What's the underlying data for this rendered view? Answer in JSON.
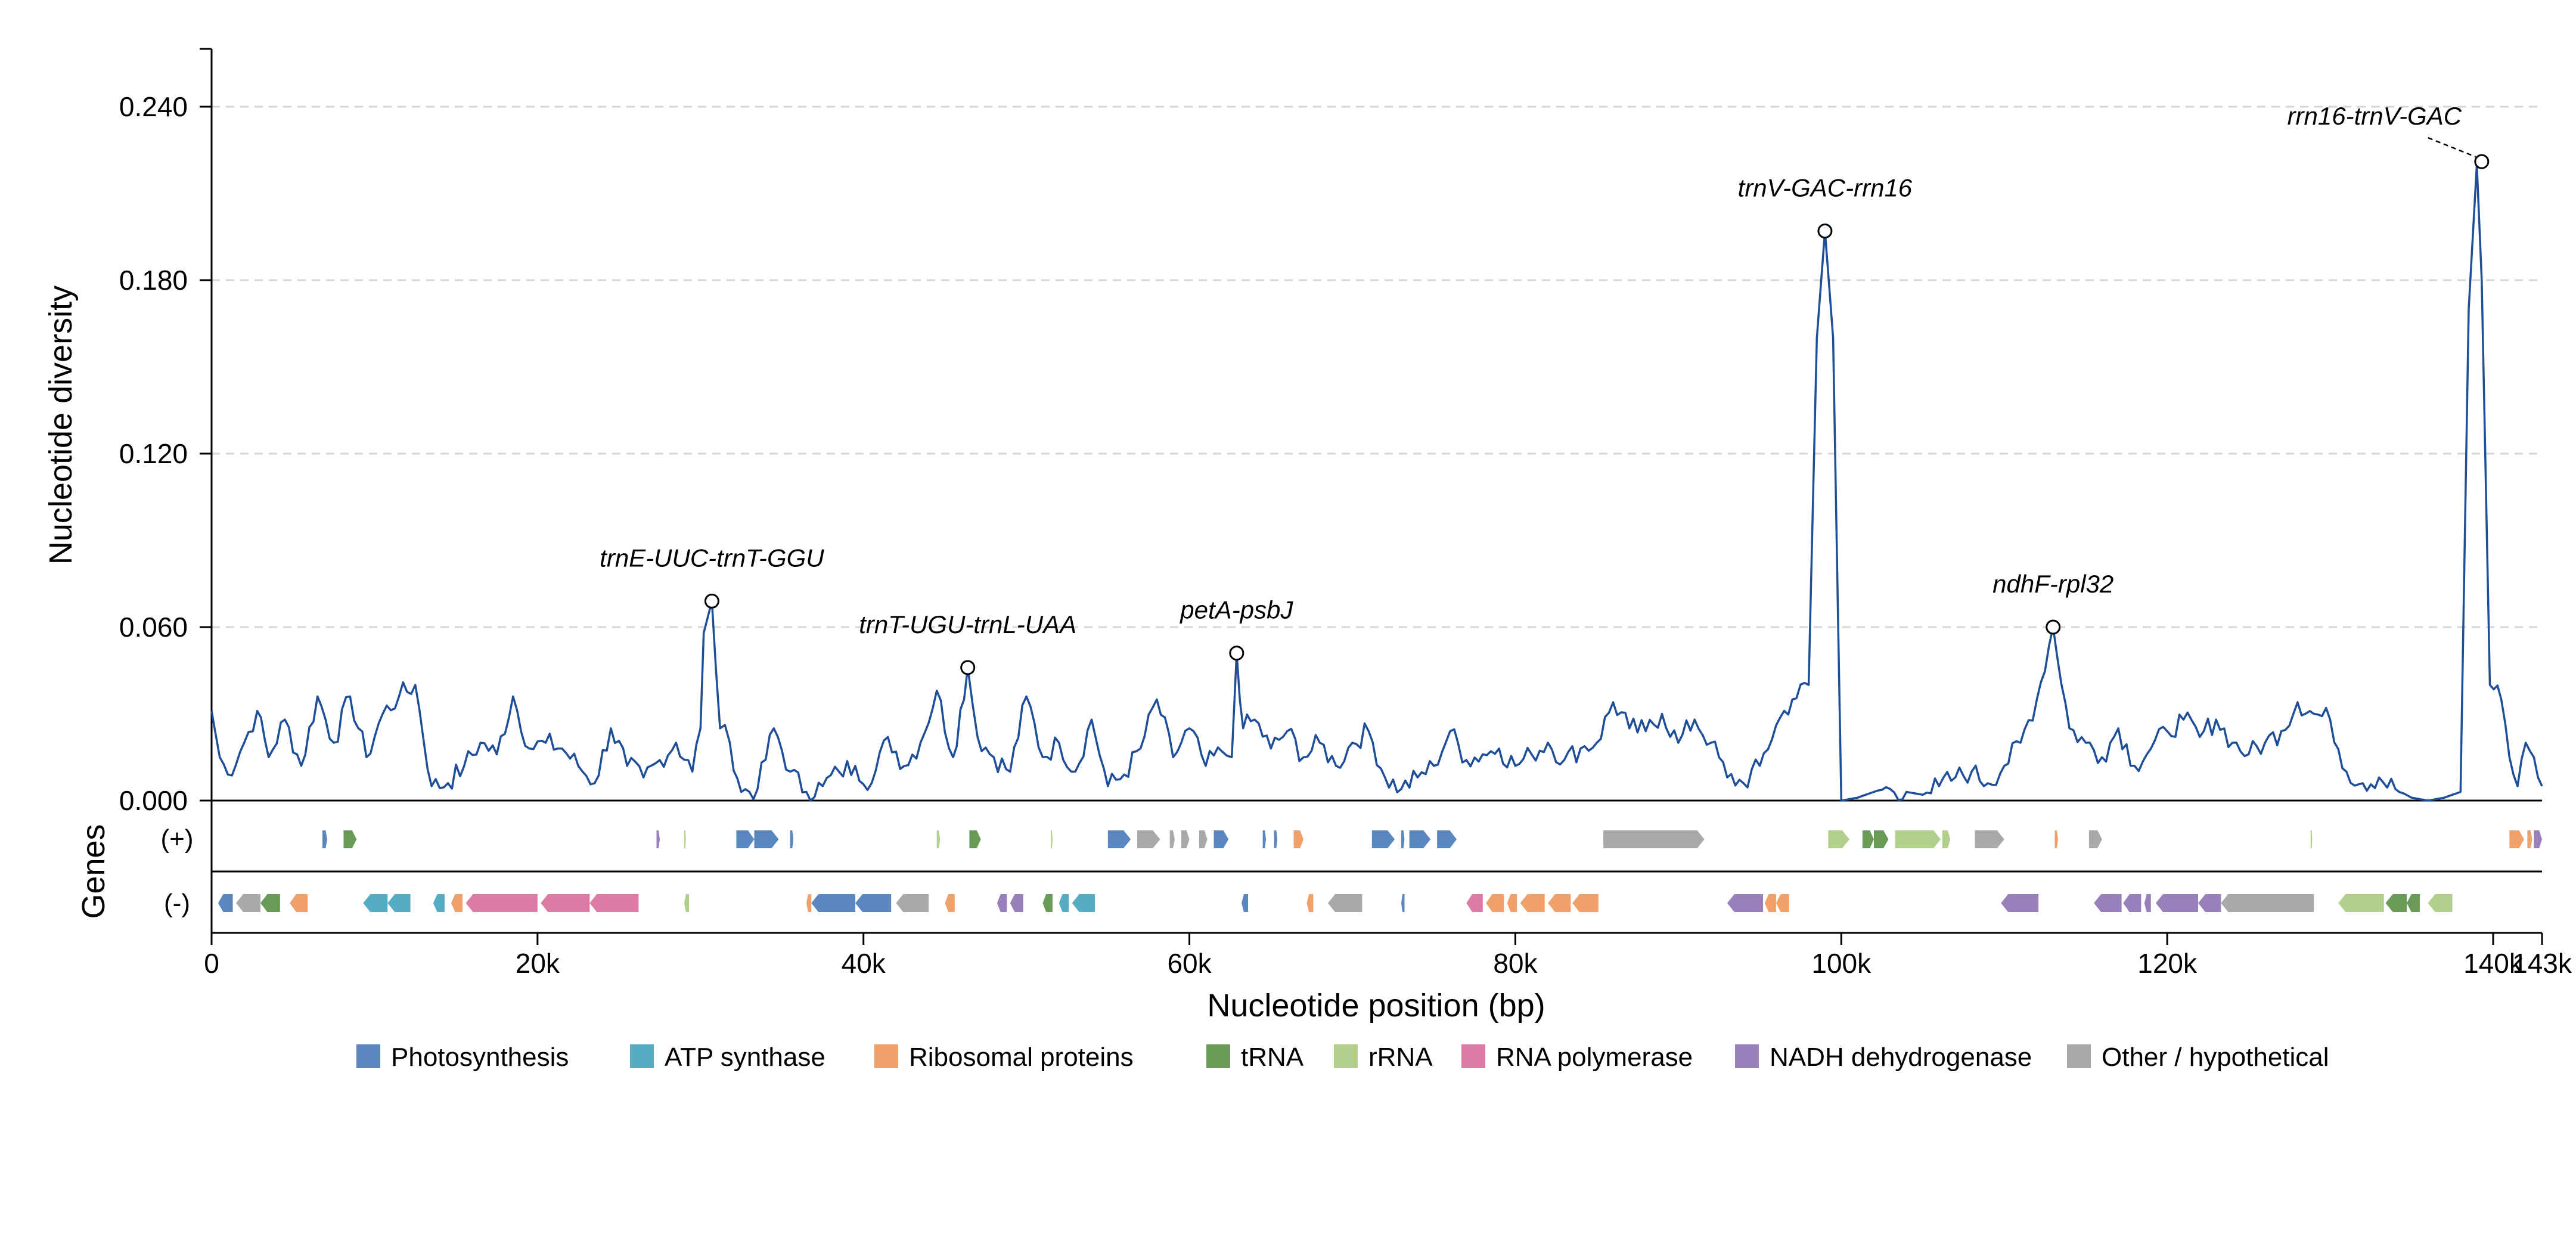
{
  "chart_data": {
    "type": "line",
    "xlabel": "Nucleotide position (bp)",
    "ylabel": "Nucleotide diversity",
    "genes_label": "Genes",
    "strand_labels": {
      "plus": "(+)",
      "minus": "(-)"
    },
    "xlim": [
      0,
      143000
    ],
    "ylim": [
      0,
      0.26
    ],
    "x_ticks": [
      {
        "value": 0,
        "label": "0"
      },
      {
        "value": 20000,
        "label": "20k"
      },
      {
        "value": 40000,
        "label": "40k"
      },
      {
        "value": 60000,
        "label": "60k"
      },
      {
        "value": 80000,
        "label": "80k"
      },
      {
        "value": 100000,
        "label": "100k"
      },
      {
        "value": 120000,
        "label": "120k"
      },
      {
        "value": 140000,
        "label": "140k"
      },
      {
        "value": 143000,
        "label": "143k"
      }
    ],
    "y_ticks": [
      {
        "value": 0.0,
        "label": "0.000"
      },
      {
        "value": 0.06,
        "label": "0.060"
      },
      {
        "value": 0.12,
        "label": "0.120"
      },
      {
        "value": 0.18,
        "label": "0.180"
      },
      {
        "value": 0.24,
        "label": "0.240"
      }
    ],
    "grid": "horizontal dashed",
    "line_color": "#1f4e99",
    "series": [
      {
        "anchors": [
          [
            0,
            0.031
          ],
          [
            500,
            0.015
          ],
          [
            1000,
            0.009
          ],
          [
            2000,
            0.02
          ],
          [
            2800,
            0.031
          ],
          [
            3500,
            0.015
          ],
          [
            4500,
            0.028
          ],
          [
            5500,
            0.012
          ],
          [
            6500,
            0.036
          ],
          [
            7500,
            0.02
          ],
          [
            8500,
            0.036
          ],
          [
            9500,
            0.015
          ],
          [
            10500,
            0.03
          ],
          [
            11500,
            0.036
          ],
          [
            12500,
            0.04
          ],
          [
            13500,
            0.005
          ],
          [
            14500,
            0.006
          ],
          [
            15500,
            0.012
          ],
          [
            16500,
            0.02
          ],
          [
            17500,
            0.016
          ],
          [
            18500,
            0.036
          ],
          [
            19500,
            0.018
          ],
          [
            20500,
            0.02
          ],
          [
            21500,
            0.018
          ],
          [
            22500,
            0.012
          ],
          [
            23500,
            0.006
          ],
          [
            24500,
            0.025
          ],
          [
            25500,
            0.012
          ],
          [
            26500,
            0.008
          ],
          [
            27500,
            0.014
          ],
          [
            28500,
            0.02
          ],
          [
            29500,
            0.01
          ],
          [
            30000,
            0.025
          ],
          [
            30200,
            0.058
          ],
          [
            30700,
            0.069
          ],
          [
            31200,
            0.025
          ],
          [
            31800,
            0.02
          ],
          [
            32500,
            0.003
          ],
          [
            33500,
            0.004
          ],
          [
            34500,
            0.025
          ],
          [
            35500,
            0.01
          ],
          [
            36500,
            0.003
          ],
          [
            37500,
            0.005
          ],
          [
            38500,
            0.01
          ],
          [
            39500,
            0.012
          ],
          [
            40500,
            0.006
          ],
          [
            41500,
            0.022
          ],
          [
            42500,
            0.012
          ],
          [
            43500,
            0.02
          ],
          [
            44500,
            0.038
          ],
          [
            45500,
            0.015
          ],
          [
            46400,
            0.046
          ],
          [
            47000,
            0.022
          ],
          [
            48000,
            0.015
          ],
          [
            49000,
            0.01
          ],
          [
            50000,
            0.036
          ],
          [
            51000,
            0.015
          ],
          [
            52000,
            0.02
          ],
          [
            53000,
            0.01
          ],
          [
            54000,
            0.028
          ],
          [
            55000,
            0.005
          ],
          [
            56000,
            0.009
          ],
          [
            57000,
            0.018
          ],
          [
            58000,
            0.035
          ],
          [
            59000,
            0.015
          ],
          [
            60000,
            0.025
          ],
          [
            61000,
            0.012
          ],
          [
            62000,
            0.017
          ],
          [
            62600,
            0.015
          ],
          [
            62900,
            0.051
          ],
          [
            63300,
            0.025
          ],
          [
            64000,
            0.028
          ],
          [
            65000,
            0.018
          ],
          [
            66000,
            0.024
          ],
          [
            67000,
            0.015
          ],
          [
            68000,
            0.02
          ],
          [
            69000,
            0.012
          ],
          [
            70000,
            0.02
          ],
          [
            71000,
            0.024
          ],
          [
            72000,
            0.008
          ],
          [
            73000,
            0.004
          ],
          [
            74000,
            0.008
          ],
          [
            75000,
            0.012
          ],
          [
            76000,
            0.024
          ],
          [
            77000,
            0.014
          ],
          [
            78000,
            0.016
          ],
          [
            79000,
            0.018
          ],
          [
            80000,
            0.012
          ],
          [
            81000,
            0.016
          ],
          [
            82000,
            0.02
          ],
          [
            83000,
            0.014
          ],
          [
            84000,
            0.018
          ],
          [
            85000,
            0.02
          ],
          [
            86000,
            0.034
          ],
          [
            87000,
            0.025
          ],
          [
            88000,
            0.024
          ],
          [
            89000,
            0.03
          ],
          [
            90000,
            0.02
          ],
          [
            91000,
            0.028
          ],
          [
            92000,
            0.02
          ],
          [
            93000,
            0.008
          ],
          [
            94000,
            0.006
          ],
          [
            95000,
            0.012
          ],
          [
            96000,
            0.026
          ],
          [
            97000,
            0.035
          ],
          [
            98000,
            0.04
          ],
          [
            98500,
            0.16
          ],
          [
            99000,
            0.197
          ],
          [
            99500,
            0.16
          ],
          [
            100000,
            0.0
          ],
          [
            101000,
            0.001
          ],
          [
            102000,
            0.003
          ],
          [
            103000,
            0.004
          ],
          [
            104000,
            0.003
          ],
          [
            105000,
            0.002
          ],
          [
            106000,
            0.005
          ],
          [
            107000,
            0.008
          ],
          [
            108000,
            0.01
          ],
          [
            109000,
            0.006
          ],
          [
            110000,
            0.012
          ],
          [
            111000,
            0.02
          ],
          [
            112000,
            0.035
          ],
          [
            113000,
            0.06
          ],
          [
            114000,
            0.025
          ],
          [
            115000,
            0.02
          ],
          [
            116000,
            0.015
          ],
          [
            117000,
            0.025
          ],
          [
            118000,
            0.012
          ],
          [
            119000,
            0.018
          ],
          [
            120000,
            0.024
          ],
          [
            121000,
            0.028
          ],
          [
            122000,
            0.022
          ],
          [
            123000,
            0.028
          ],
          [
            124000,
            0.02
          ],
          [
            125000,
            0.016
          ],
          [
            126000,
            0.02
          ],
          [
            127000,
            0.024
          ],
          [
            128000,
            0.034
          ],
          [
            129000,
            0.03
          ],
          [
            130000,
            0.028
          ],
          [
            131000,
            0.01
          ],
          [
            132000,
            0.006
          ],
          [
            133000,
            0.008
          ],
          [
            134000,
            0.004
          ],
          [
            135000,
            0.001
          ],
          [
            136000,
            0.0
          ],
          [
            137000,
            0.001
          ],
          [
            138000,
            0.003
          ],
          [
            138500,
            0.17
          ],
          [
            139000,
            0.22
          ],
          [
            139300,
            0.18
          ],
          [
            139800,
            0.04
          ],
          [
            140500,
            0.035
          ],
          [
            141000,
            0.015
          ],
          [
            141500,
            0.005
          ],
          [
            142000,
            0.02
          ],
          [
            142500,
            0.015
          ],
          [
            143000,
            0.005
          ]
        ]
      }
    ],
    "annotations": [
      {
        "label": "trnE-UUC-trnT-GGU",
        "x": 30700,
        "y": 0.069
      },
      {
        "label": "trnT-UGU-trnL-UAA",
        "x": 46400,
        "y": 0.046
      },
      {
        "label": "petA-psbJ",
        "x": 62900,
        "y": 0.051
      },
      {
        "label": "trnV-GAC-rrn16",
        "x": 99000,
        "y": 0.197
      },
      {
        "label": "ndhF-rpl32",
        "x": 113000,
        "y": 0.06
      },
      {
        "label": "rrn16-trnV-GAC",
        "x": 139300,
        "y": 0.221
      }
    ],
    "categories": [
      {
        "name": "Photosynthesis",
        "color": "#5b87c0"
      },
      {
        "name": "ATP synthase",
        "color": "#55adc4"
      },
      {
        "name": "Ribosomal proteins",
        "color": "#f0a169"
      },
      {
        "name": "tRNA",
        "color": "#6a9a58"
      },
      {
        "name": "rRNA",
        "color": "#b0d08b"
      },
      {
        "name": "RNA polymerase",
        "color": "#dd7ba6"
      },
      {
        "name": "NADH dehydrogenase",
        "color": "#9a80bb"
      },
      {
        "name": "Other / hypothetical",
        "color": "#a9a9a9"
      }
    ],
    "legend_position": "bottom-center",
    "genes_plus": [
      [
        6800,
        7100,
        0
      ],
      [
        8100,
        8900,
        3
      ],
      [
        27300,
        27500,
        6
      ],
      [
        29000,
        29100,
        4
      ],
      [
        32200,
        33300,
        0
      ],
      [
        33300,
        34800,
        0
      ],
      [
        35500,
        35700,
        0
      ],
      [
        44500,
        44700,
        4
      ],
      [
        46500,
        47200,
        3
      ],
      [
        51500,
        51600,
        4
      ],
      [
        55000,
        56400,
        0
      ],
      [
        56800,
        58200,
        7
      ],
      [
        58800,
        59100,
        7
      ],
      [
        59500,
        60000,
        7
      ],
      [
        60600,
        61100,
        7
      ],
      [
        61500,
        62400,
        0
      ],
      [
        64500,
        64700,
        0
      ],
      [
        65200,
        65400,
        0
      ],
      [
        66400,
        67000,
        2
      ],
      [
        71200,
        72600,
        0
      ],
      [
        73000,
        73200,
        0
      ],
      [
        73500,
        74800,
        0
      ],
      [
        75200,
        76400,
        0
      ],
      [
        85400,
        91600,
        7
      ],
      [
        99200,
        100500,
        4
      ],
      [
        101300,
        102000,
        3
      ],
      [
        102000,
        102900,
        3
      ],
      [
        103300,
        106100,
        4
      ],
      [
        106200,
        106700,
        4
      ],
      [
        108200,
        110000,
        7
      ],
      [
        113100,
        113300,
        2
      ],
      [
        115200,
        116000,
        7
      ],
      [
        128800,
        128900,
        4
      ],
      [
        141000,
        141900,
        2
      ],
      [
        142100,
        142400,
        2
      ],
      [
        142500,
        143000,
        6
      ]
    ],
    "genes_minus": [
      [
        400,
        1300,
        0
      ],
      [
        1500,
        3000,
        7
      ],
      [
        3000,
        4200,
        3
      ],
      [
        4800,
        5900,
        2
      ],
      [
        9300,
        10800,
        1
      ],
      [
        10800,
        12200,
        1
      ],
      [
        13600,
        14300,
        1
      ],
      [
        14700,
        15400,
        2
      ],
      [
        15600,
        20000,
        5
      ],
      [
        20200,
        23200,
        5
      ],
      [
        23200,
        26200,
        5
      ],
      [
        29000,
        29300,
        4
      ],
      [
        36500,
        36800,
        2
      ],
      [
        36800,
        39500,
        0
      ],
      [
        39500,
        41700,
        0
      ],
      [
        42000,
        44000,
        7
      ],
      [
        45000,
        45600,
        2
      ],
      [
        48200,
        48800,
        6
      ],
      [
        49000,
        49800,
        6
      ],
      [
        51000,
        51600,
        3
      ],
      [
        52000,
        52600,
        1
      ],
      [
        52800,
        54200,
        1
      ],
      [
        63200,
        63600,
        0
      ],
      [
        67200,
        67600,
        2
      ],
      [
        68500,
        70600,
        7
      ],
      [
        73000,
        73200,
        0
      ],
      [
        77000,
        78000,
        5
      ],
      [
        78200,
        79300,
        2
      ],
      [
        79500,
        80100,
        2
      ],
      [
        80300,
        81800,
        2
      ],
      [
        82000,
        83400,
        2
      ],
      [
        83500,
        85100,
        2
      ],
      [
        93000,
        95200,
        6
      ],
      [
        95300,
        96000,
        2
      ],
      [
        96000,
        96800,
        2
      ],
      [
        109800,
        112100,
        6
      ],
      [
        115500,
        117200,
        6
      ],
      [
        117300,
        118400,
        6
      ],
      [
        118600,
        119000,
        6
      ],
      [
        119300,
        121900,
        6
      ],
      [
        121900,
        123300,
        6
      ],
      [
        123300,
        129000,
        7
      ],
      [
        130500,
        133300,
        4
      ],
      [
        133400,
        134700,
        3
      ],
      [
        134700,
        135500,
        3
      ],
      [
        136000,
        137500,
        4
      ]
    ]
  }
}
